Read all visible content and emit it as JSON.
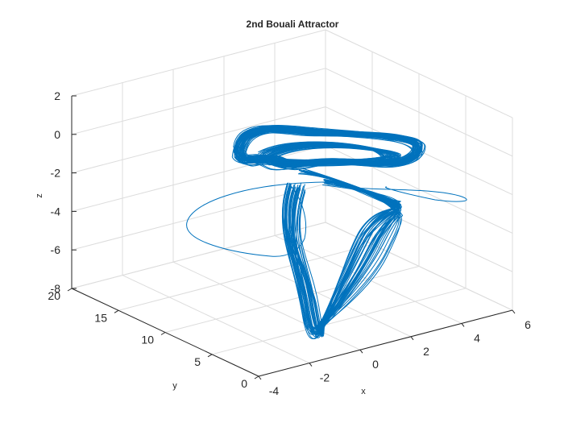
{
  "chart_data": {
    "type": "line",
    "projection": "3d",
    "title": "2nd Bouali Attractor",
    "xlabel": "x",
    "ylabel": "y",
    "zlabel": "z",
    "xlim": [
      -4,
      6
    ],
    "ylim": [
      0,
      20
    ],
    "zlim": [
      -8,
      2
    ],
    "xticks": [
      "-2",
      "0",
      "2",
      "4",
      "6"
    ],
    "xtick_values": [
      -2,
      0,
      2,
      4,
      6
    ],
    "xtick_first": "-4",
    "yticks": [
      "0",
      "5",
      "10",
      "15",
      "20"
    ],
    "ytick_values": [
      0,
      5,
      10,
      15,
      20
    ],
    "zticks": [
      "2",
      "0",
      "-2",
      "-4",
      "-6",
      "-8"
    ],
    "ztick_values": [
      2,
      0,
      -2,
      -4,
      -6,
      -8
    ],
    "grid": true,
    "box": "back-planes",
    "series": [
      {
        "color": "#0072BD",
        "description_points": [
          {
            "x": 0.6,
            "y": 3.2,
            "z": -1.2
          },
          {
            "x": 4.3,
            "y": 7.8,
            "z": -5.0
          },
          {
            "x": -2.1,
            "y": 11.0,
            "z": -7.1
          },
          {
            "x": 1.6,
            "y": 4.6,
            "z": -5.7
          }
        ]
      }
    ]
  },
  "colors": {
    "line": "#0072BD",
    "grid": "#dcdcdc",
    "axis": "#262626"
  }
}
